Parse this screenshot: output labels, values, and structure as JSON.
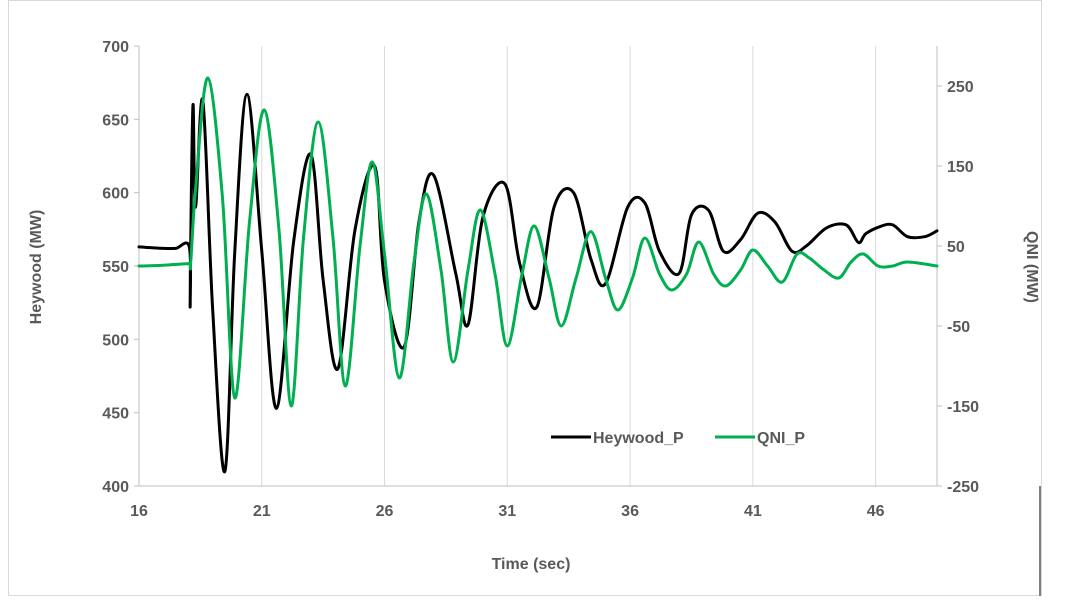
{
  "chart_data": {
    "type": "line",
    "title": "",
    "xlabel": "Time (sec)",
    "ylabel": "Heywood (MW)",
    "y2label": "QNI (MW)",
    "xlim": [
      16,
      48.5
    ],
    "ylim": [
      400,
      700
    ],
    "y2lim": [
      -250,
      300
    ],
    "x_ticks": [
      "16",
      "21",
      "26",
      "31",
      "36",
      "41",
      "46"
    ],
    "y_ticks": [
      "400",
      "450",
      "500",
      "550",
      "600",
      "650",
      "700"
    ],
    "y2_ticks": [
      "-250",
      "-150",
      "-50",
      "50",
      "150",
      "250"
    ],
    "grid": "vertical",
    "legend_position": "bottom-right",
    "series": [
      {
        "name": "Heywood_P",
        "axis": "left",
        "color": "#000000",
        "x": [
          16,
          17,
          17.5,
          18.05,
          18.08,
          18.1,
          18.2,
          18.3,
          18.6,
          19.0,
          19.5,
          19.9,
          20.4,
          21.0,
          21.6,
          22.3,
          23.0,
          23.5,
          24.1,
          24.8,
          25.6,
          26.0,
          26.8,
          27.4,
          28.0,
          28.9,
          29.4,
          30.0,
          30.9,
          31.5,
          32.2,
          32.9,
          33.7,
          34.4,
          35.0,
          35.9,
          36.6,
          37.2,
          38.0,
          38.5,
          39.2,
          39.8,
          40.5,
          41.2,
          41.9,
          42.6,
          43.2,
          44.0,
          44.8,
          45.3,
          45.6,
          46.2,
          46.7,
          47.3,
          48.0,
          48.5
        ],
        "values": [
          563,
          562,
          562,
          563,
          522,
          560,
          660,
          590,
          663,
          520,
          410,
          560,
          667,
          560,
          453,
          567,
          626,
          540,
          480,
          575,
          618,
          540,
          495,
          580,
          612,
          545,
          510,
          583,
          606,
          552,
          522,
          590,
          600,
          555,
          538,
          590,
          593,
          560,
          545,
          585,
          588,
          560,
          568,
          586,
          580,
          560,
          564,
          576,
          578,
          566,
          572,
          577,
          578,
          570,
          570,
          574
        ]
      },
      {
        "name": "QNI_P",
        "axis": "right",
        "color": "#00b050",
        "x": [
          16,
          17,
          18,
          18.1,
          18.3,
          18.8,
          19.4,
          19.9,
          20.5,
          21.1,
          21.7,
          22.2,
          22.7,
          23.3,
          23.9,
          24.4,
          25.0,
          25.5,
          26.0,
          26.6,
          27.2,
          27.7,
          28.3,
          28.8,
          29.4,
          29.9,
          30.5,
          31.0,
          31.6,
          32.1,
          32.7,
          33.2,
          33.8,
          34.4,
          35.0,
          35.5,
          36.1,
          36.6,
          37.2,
          37.7,
          38.3,
          38.8,
          39.4,
          39.9,
          40.5,
          41.0,
          41.6,
          42.2,
          42.8,
          43.3,
          43.9,
          44.5,
          45.0,
          45.5,
          46.1,
          46.7,
          47.3,
          48.5
        ],
        "values": [
          25,
          26,
          28,
          28,
          120,
          260,
          110,
          -140,
          80,
          220,
          70,
          -150,
          60,
          205,
          60,
          -125,
          50,
          155,
          40,
          -115,
          30,
          115,
          20,
          -95,
          20,
          95,
          15,
          -75,
          15,
          75,
          10,
          -50,
          10,
          68,
          10,
          -30,
          10,
          60,
          15,
          -5,
          15,
          55,
          15,
          0,
          20,
          45,
          25,
          5,
          40,
          35,
          20,
          10,
          30,
          40,
          25,
          25,
          30,
          25
        ]
      }
    ]
  }
}
